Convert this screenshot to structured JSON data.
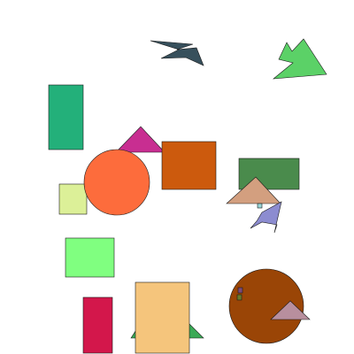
{
  "scene": {
    "background": "#ffffff",
    "shape_colors": {
      "dark_slate_bird": "#37505c",
      "green_bird": "#5bd167",
      "teal_rect": "#23b07a",
      "magenta_triangle": "#c82e91",
      "orange_square": "#cc5a0d",
      "orange_circle": "#fd6c3c",
      "pale_green_square": "#dcf098",
      "forest_green_rect": "#4a8b4c",
      "tan_triangle": "#d39f7f",
      "periwinkle_polygon": "#8c8cd0",
      "tiny_square": "#9ad6d6",
      "light_green_square": "#80ff80",
      "crimson_rect": "#d3174b",
      "green_triangle": "#3aa955",
      "peach_rect": "#f5c57c",
      "brown_circle": "#9a4506",
      "mauve_triangle": "#b88f9e",
      "purple_marker": "#7a4a7a",
      "olive_marker": "#6a7a2a"
    }
  }
}
